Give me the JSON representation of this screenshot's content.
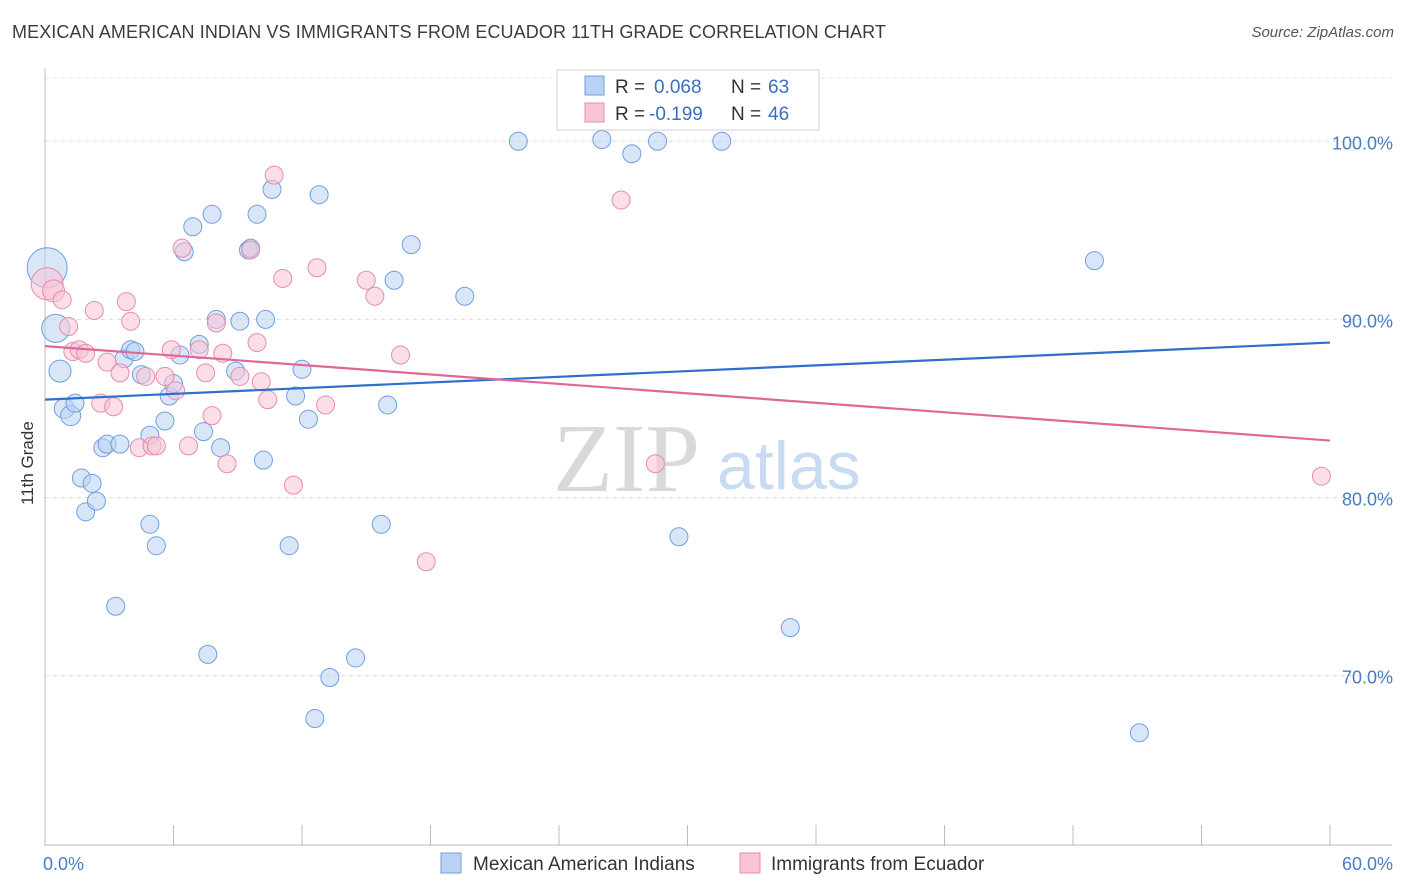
{
  "title": "MEXICAN AMERICAN INDIAN VS IMMIGRANTS FROM ECUADOR 11TH GRADE CORRELATION CHART",
  "source": "Source: ZipAtlas.com",
  "watermark": {
    "zip": "ZIP",
    "atlas": "atlas"
  },
  "legend": {
    "r_label": "R =",
    "n_label": "N =",
    "rows": [
      {
        "r": "0.068",
        "n": "63"
      },
      {
        "r": "-0.199",
        "n": "46"
      }
    ]
  },
  "chart_data": {
    "type": "scatter",
    "title": "MEXICAN AMERICAN INDIAN VS IMMIGRANTS FROM ECUADOR 11TH GRADE CORRELATION CHART",
    "xlabel": "",
    "ylabel": "11th Grade",
    "xlim": [
      0,
      60
    ],
    "ylim": [
      60.5,
      104
    ],
    "x_tick_labels": [
      "0.0%",
      "60.0%"
    ],
    "y_ticks": [
      70,
      80,
      90,
      100
    ],
    "y_tick_labels": [
      "70.0%",
      "80.0%",
      "90.0%",
      "100.0%"
    ],
    "grid": true,
    "legend_position": "top-center",
    "series": [
      {
        "name": "Mexican American Indians",
        "color": "#6f9fe0",
        "fill": "#b9d1f2",
        "trend": {
          "x": [
            0,
            60
          ],
          "y": [
            85.5,
            88.7
          ]
        },
        "points": [
          [
            0.1,
            92.9,
            20
          ],
          [
            0.5,
            89.5,
            14
          ],
          [
            0.7,
            87.1,
            11
          ],
          [
            0.9,
            85.0,
            10
          ],
          [
            1.2,
            84.6,
            10
          ],
          [
            1.4,
            85.3,
            9
          ],
          [
            1.7,
            81.1,
            9
          ],
          [
            1.9,
            79.2,
            9
          ],
          [
            2.2,
            80.8,
            9
          ],
          [
            2.4,
            79.8,
            9
          ],
          [
            2.7,
            82.8,
            9
          ],
          [
            2.9,
            83.0,
            9
          ],
          [
            3.3,
            73.9,
            9
          ],
          [
            3.5,
            83.0,
            9
          ],
          [
            3.7,
            87.8,
            9
          ],
          [
            4.0,
            88.3,
            9
          ],
          [
            4.2,
            88.2,
            9
          ],
          [
            4.5,
            86.9,
            9
          ],
          [
            4.9,
            78.5,
            9
          ],
          [
            4.9,
            83.5,
            9
          ],
          [
            5.2,
            77.3,
            9
          ],
          [
            5.6,
            84.3,
            9
          ],
          [
            5.8,
            85.7,
            9
          ],
          [
            6.0,
            86.4,
            9
          ],
          [
            6.3,
            88.0,
            9
          ],
          [
            6.5,
            93.8,
            9
          ],
          [
            6.9,
            95.2,
            9
          ],
          [
            7.2,
            88.6,
            9
          ],
          [
            7.4,
            83.7,
            9
          ],
          [
            7.6,
            71.2,
            9
          ],
          [
            7.8,
            95.9,
            9
          ],
          [
            8.0,
            90.0,
            9
          ],
          [
            8.2,
            82.8,
            9
          ],
          [
            8.9,
            87.1,
            9
          ],
          [
            9.1,
            89.9,
            9
          ],
          [
            9.5,
            93.9,
            9
          ],
          [
            9.6,
            94.0,
            9
          ],
          [
            9.9,
            95.9,
            9
          ],
          [
            10.2,
            82.1,
            9
          ],
          [
            10.3,
            90.0,
            9
          ],
          [
            10.6,
            97.3,
            9
          ],
          [
            11.4,
            77.3,
            9
          ],
          [
            11.7,
            85.7,
            9
          ],
          [
            12.0,
            87.2,
            9
          ],
          [
            12.3,
            84.4,
            9
          ],
          [
            12.6,
            67.6,
            9
          ],
          [
            12.8,
            97.0,
            9
          ],
          [
            13.3,
            69.9,
            9
          ],
          [
            14.5,
            71.0,
            9
          ],
          [
            15.7,
            78.5,
            9
          ],
          [
            16.0,
            85.2,
            9
          ],
          [
            16.3,
            92.2,
            9
          ],
          [
            17.1,
            94.2,
            9
          ],
          [
            19.6,
            91.3,
            9
          ],
          [
            22.1,
            100.0,
            9
          ],
          [
            26.0,
            100.1,
            9
          ],
          [
            28.6,
            100.0,
            9
          ],
          [
            29.6,
            77.8,
            9
          ],
          [
            31.6,
            100.0,
            9
          ],
          [
            34.8,
            72.7,
            9
          ],
          [
            49.0,
            93.3,
            9
          ],
          [
            51.1,
            66.8,
            9
          ],
          [
            27.4,
            99.3,
            9
          ]
        ]
      },
      {
        "name": "Immigrants from Ecuador",
        "color": "#e88cab",
        "fill": "#f8c3d5",
        "trend": {
          "x": [
            0,
            60
          ],
          "y": [
            88.5,
            83.2
          ]
        },
        "points": [
          [
            0.1,
            92.0,
            16
          ],
          [
            0.4,
            91.6,
            11
          ],
          [
            0.8,
            91.1,
            9
          ],
          [
            1.1,
            89.6,
            9
          ],
          [
            1.3,
            88.2,
            9
          ],
          [
            1.6,
            88.3,
            9
          ],
          [
            1.9,
            88.1,
            9
          ],
          [
            2.3,
            90.5,
            9
          ],
          [
            2.6,
            85.3,
            9
          ],
          [
            2.9,
            87.6,
            9
          ],
          [
            3.2,
            85.1,
            9
          ],
          [
            3.5,
            87.0,
            9
          ],
          [
            3.8,
            91.0,
            9
          ],
          [
            4.0,
            89.9,
            9
          ],
          [
            4.4,
            82.8,
            9
          ],
          [
            4.7,
            86.8,
            9
          ],
          [
            5.0,
            82.9,
            9
          ],
          [
            5.2,
            82.9,
            9
          ],
          [
            5.6,
            86.8,
            9
          ],
          [
            5.9,
            88.3,
            9
          ],
          [
            6.1,
            86.0,
            9
          ],
          [
            6.4,
            94.0,
            9
          ],
          [
            6.7,
            82.9,
            9
          ],
          [
            7.2,
            88.3,
            9
          ],
          [
            7.5,
            87.0,
            9
          ],
          [
            7.8,
            84.6,
            9
          ],
          [
            8.0,
            89.8,
            9
          ],
          [
            8.3,
            88.1,
            9
          ],
          [
            8.5,
            81.9,
            9
          ],
          [
            9.1,
            86.8,
            9
          ],
          [
            9.6,
            93.9,
            9
          ],
          [
            9.9,
            88.7,
            9
          ],
          [
            10.1,
            86.5,
            9
          ],
          [
            10.4,
            85.5,
            9
          ],
          [
            10.7,
            98.1,
            9
          ],
          [
            11.1,
            92.3,
            9
          ],
          [
            11.6,
            80.7,
            9
          ],
          [
            12.7,
            92.9,
            9
          ],
          [
            13.1,
            85.2,
            9
          ],
          [
            15.0,
            92.2,
            9
          ],
          [
            15.4,
            91.3,
            9
          ],
          [
            16.6,
            88.0,
            9
          ],
          [
            17.8,
            76.4,
            9
          ],
          [
            26.9,
            96.7,
            9
          ],
          [
            28.5,
            81.9,
            9
          ],
          [
            59.6,
            81.2,
            9
          ]
        ]
      }
    ]
  }
}
